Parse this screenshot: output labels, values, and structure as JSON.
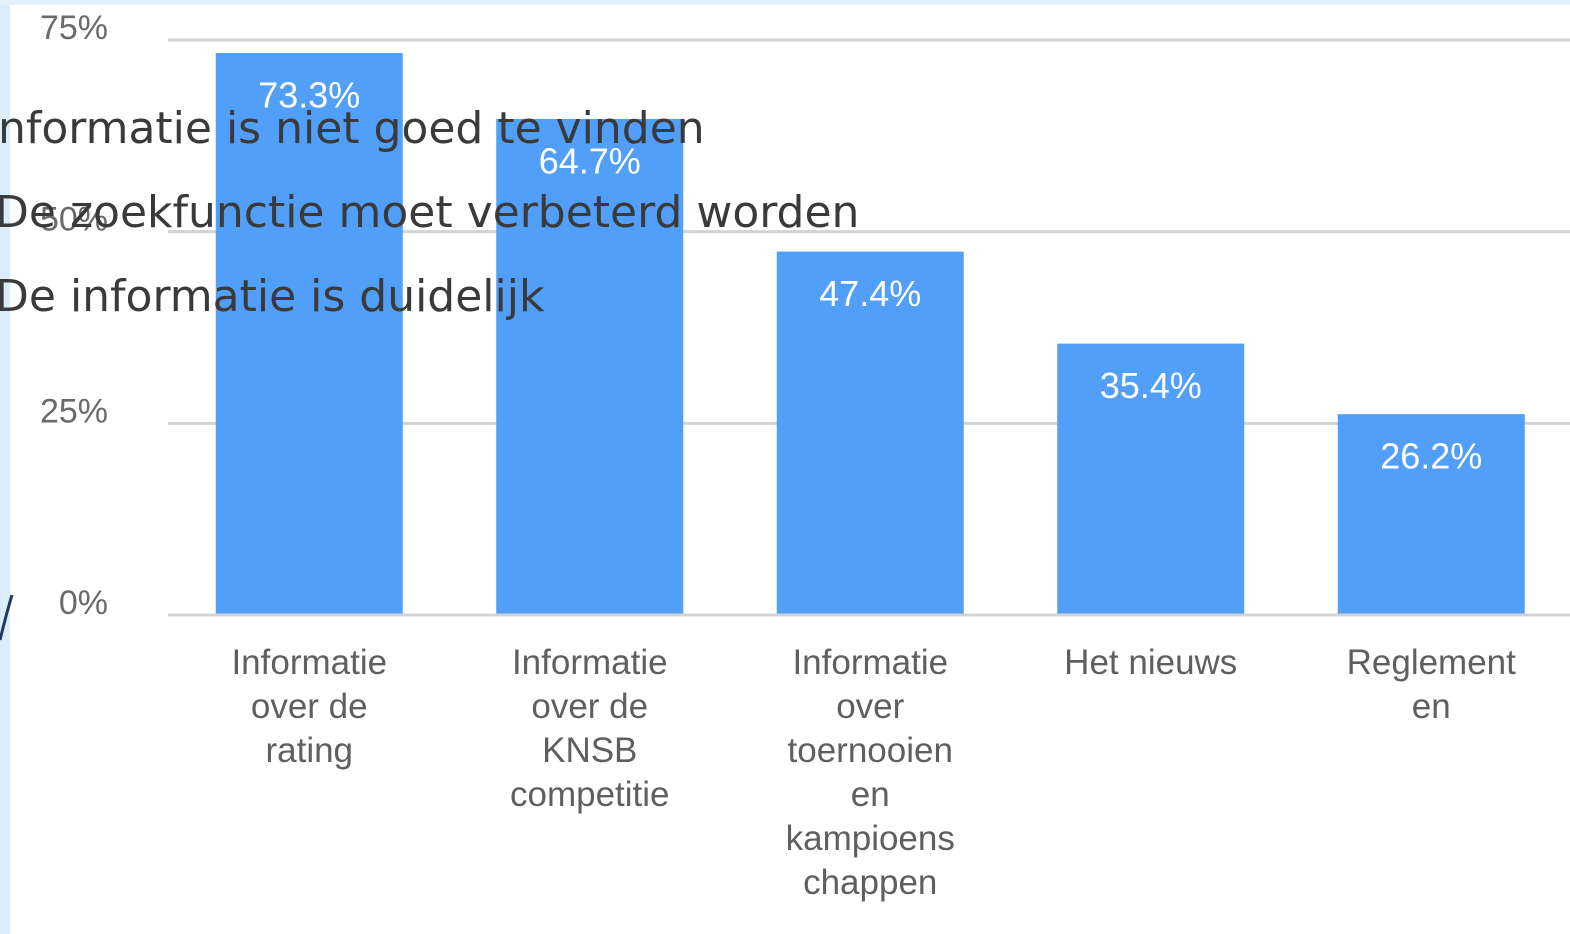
{
  "slide_text": [
    "Informatie is niet goed te vinden",
    "De zoekfunctie moet verbeterd worden",
    "De informatie is duidelijk"
  ],
  "chart_data": {
    "type": "bar",
    "categories": [
      "Informatie\nover de\nrating",
      "Informatie\nover de\nKNSB\ncompetitie",
      "Informatie\nover\ntoernooien\nen\nkampioens\nchappen",
      "Het nieuws",
      "Reglement\nen"
    ],
    "values": [
      73.3,
      64.7,
      47.4,
      35.4,
      26.2
    ],
    "value_labels": [
      "73.3%",
      "64.7%",
      "47.4%",
      "35.4%",
      "26.2%"
    ],
    "color": "#519ff8",
    "ylim": [
      0,
      75
    ],
    "yticks": [
      {
        "value": 0,
        "label": "0%"
      },
      {
        "value": 25,
        "label": "25%"
      },
      {
        "value": 50,
        "label": "50%"
      },
      {
        "value": 75,
        "label": "75%"
      }
    ],
    "grid": true
  }
}
